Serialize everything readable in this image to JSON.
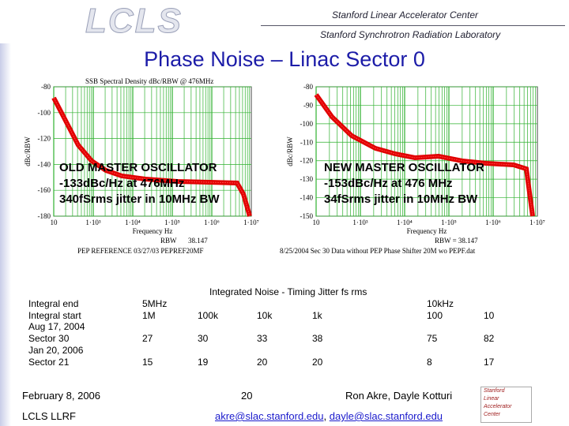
{
  "header": {
    "logo": "LCLS",
    "org1": "Stanford Linear Accelerator Center",
    "org2": "Stanford Synchrotron Radiation Laboratory"
  },
  "title": "Phase Noise – Linac Sector 0",
  "plots": [
    {
      "heading": "SSB Spectral Density dBc/RBW @ 476MHz",
      "y_label": "dBc/RBW",
      "yticks": [
        "-80",
        "-100",
        "-120",
        "-140",
        "-160",
        "-180"
      ],
      "xticks": [
        "10",
        "1·10³",
        "1·10⁴",
        "1·10⁵",
        "1·10⁶",
        "1·10⁷"
      ],
      "x_label": "Frequency Hz",
      "rbw": "RBW",
      "rbw_value": "38.147",
      "caption": "PEP REFERENCE 03/27/03 PEPREF20MF",
      "overlay": [
        "OLD MASTER OSCILLATOR",
        "-133dBc/Hz at 476MHz",
        "340fSrms jitter in 10MHz BW"
      ]
    },
    {
      "y_label": "dBc/RBW",
      "yticks": [
        "-80",
        "-90",
        "-100",
        "-110",
        "-120",
        "-130",
        "-140",
        "-150"
      ],
      "xticks": [
        "10",
        "1·10³",
        "1·10⁴",
        "1·10⁵",
        "1·10⁶",
        "1·10⁷"
      ],
      "x_label": "Frequency Hz",
      "rbw": "RBW = 38.147",
      "caption": "8/25/2004 Sec 30 Data without PEP Phase Shifter 20M wo PEPF.dat",
      "overlay": [
        "NEW MASTER OSCILLATOR",
        "-153dBc/Hz at 476 MHz",
        "34fSrms jitter in 10MHz BW"
      ]
    }
  ],
  "table": {
    "title": "Integrated Noise - Timing Jitter fs rms",
    "row_header": [
      "Integral end",
      "Integral start"
    ],
    "columns": [
      {
        "end": "5MHz",
        "start": "1M"
      },
      {
        "start": "100k"
      },
      {
        "start": "10k"
      },
      {
        "start": "1k"
      },
      {
        "end": "10kHz",
        "start": "100"
      },
      {
        "start": "10"
      }
    ],
    "rows": [
      {
        "date": "Aug 17, 2004",
        "sector": "Sector 30",
        "values": [
          27,
          30,
          33,
          38,
          75,
          82
        ]
      },
      {
        "date": "Jan 20, 2006",
        "sector": "Sector 21",
        "values": [
          15,
          19,
          20,
          20,
          8,
          17
        ]
      }
    ]
  },
  "footer": {
    "date": "February 8, 2006",
    "page": "20",
    "authors": "Ron Akre, Dayle Kotturi",
    "group": "LCLS LLRF",
    "email1": "akre@slac.stanford.edu",
    "separator": ",",
    "email2": "dayle@slac.stanford.edu",
    "logo_lines": [
      "Stanford",
      "Linear",
      "Accelerator",
      "Center"
    ]
  }
}
